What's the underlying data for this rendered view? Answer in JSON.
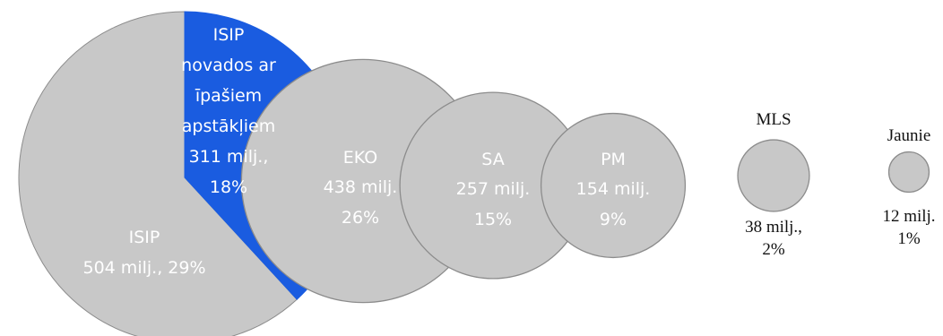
{
  "chart_data": {
    "type": "pie",
    "title": "",
    "colors": {
      "bubble": "#c8c8c8",
      "bubble_stroke": "#8c8c8c",
      "highlight": "#1a5ce0",
      "inner_text": "#ffffff",
      "outer_text": "#111111"
    },
    "main_pie": {
      "slices": [
        {
          "name": "ISIP",
          "value": 504,
          "amount_text": "504 milj., 29%",
          "percent": 29
        },
        {
          "name": "ISIP novados ar īpašiem apstākļiem",
          "value": 311,
          "label_lines": [
            "ISIP",
            "novados ar",
            "īpašiem",
            "apstākļiem",
            "311 milj.,",
            "18%"
          ],
          "percent": 18
        }
      ]
    },
    "bubbles": [
      {
        "name": "EKO",
        "value": 438,
        "amount_text": "438 milj.",
        "percent_text": "26%"
      },
      {
        "name": "SA",
        "value": 257,
        "amount_text": "257 milj.",
        "percent_text": "15%"
      },
      {
        "name": "PM",
        "value": 154,
        "amount_text": "154 milj.",
        "percent_text": "9%"
      },
      {
        "name": "MLS",
        "value": 38,
        "amount_text": "38 milj.,",
        "percent_text": "2%"
      },
      {
        "name": "Jaunie",
        "value": 12,
        "amount_text": "12 milj.",
        "percent_text": "1%"
      }
    ]
  }
}
